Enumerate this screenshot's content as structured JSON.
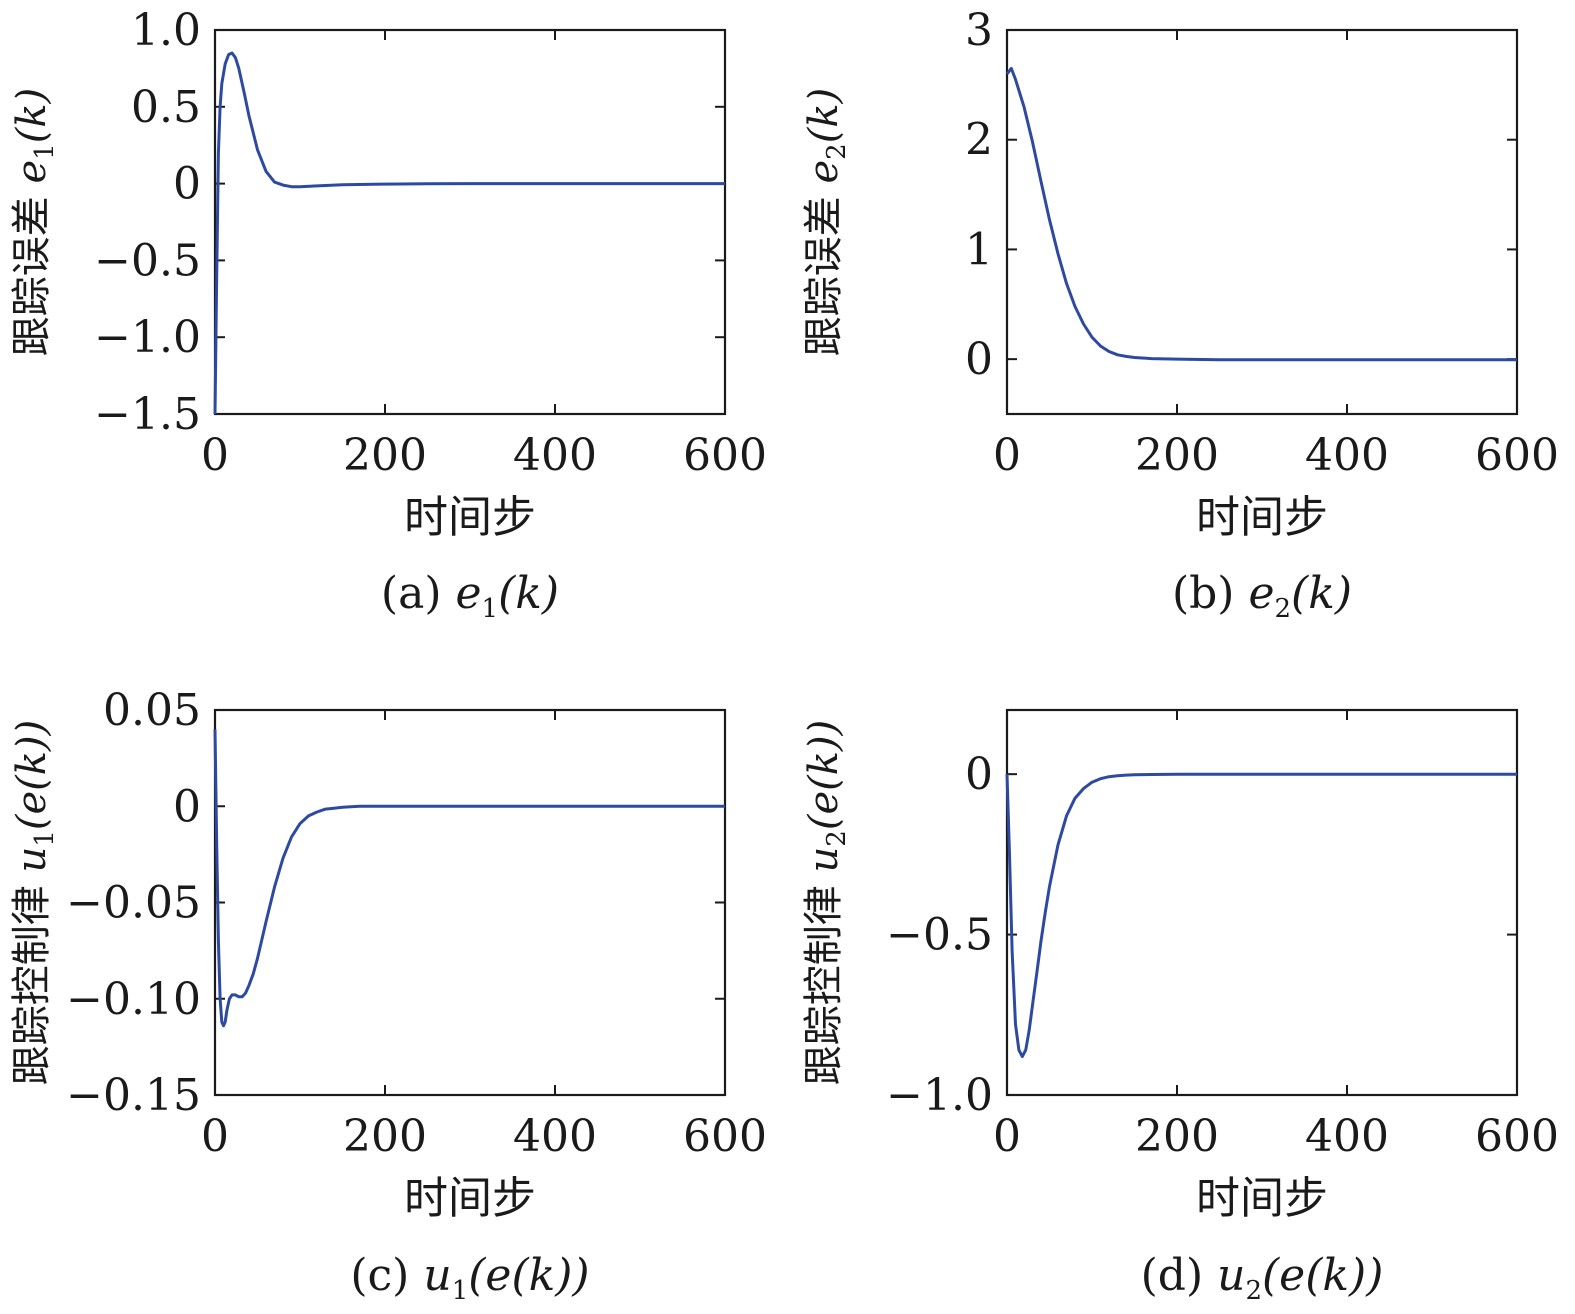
{
  "style": {
    "line_color": "#2e4aa0"
  },
  "chart_data": [
    {
      "type": "line",
      "panel": "a",
      "caption": {
        "prefix": "(a)",
        "var": "e",
        "sub": "1",
        "arg": "(k)"
      },
      "xlabel": "时间步",
      "ylabel": {
        "text": "跟踪误差",
        "var": "e",
        "sub": "1",
        "arg": "(k)"
      },
      "xlim": [
        0,
        600
      ],
      "ylim": [
        -1.5,
        1.0
      ],
      "xticks": [
        0,
        200,
        400,
        600
      ],
      "yticks": [
        -1.5,
        -1.0,
        -0.5,
        0,
        0.5,
        1.0
      ],
      "yticklabels": [
        "−1.5",
        "−1.0",
        "−0.5",
        "0",
        "0.5",
        "1.0"
      ],
      "series": [
        {
          "x": [
            0,
            2,
            4,
            6,
            8,
            12,
            16,
            20,
            24,
            28,
            34,
            40,
            50,
            60,
            70,
            80,
            90,
            100,
            120,
            150,
            200,
            250,
            300,
            400,
            500,
            600
          ],
          "y": [
            -1.5,
            -0.6,
            0.2,
            0.5,
            0.65,
            0.78,
            0.84,
            0.85,
            0.82,
            0.75,
            0.6,
            0.44,
            0.22,
            0.08,
            0.01,
            -0.01,
            -0.02,
            -0.02,
            -0.015,
            -0.008,
            -0.003,
            -0.001,
            0,
            0,
            0,
            0
          ]
        }
      ]
    },
    {
      "type": "line",
      "panel": "b",
      "caption": {
        "prefix": "(b)",
        "var": "e",
        "sub": "2",
        "arg": "(k)"
      },
      "xlabel": "时间步",
      "ylabel": {
        "text": "跟踪误差",
        "var": "e",
        "sub": "2",
        "arg": "(k)"
      },
      "xlim": [
        0,
        600
      ],
      "ylim": [
        -0.5,
        3
      ],
      "xticks": [
        0,
        200,
        400,
        600
      ],
      "yticks": [
        0,
        1,
        2,
        3
      ],
      "yticklabels": [
        "0",
        "1",
        "2",
        "3"
      ],
      "series": [
        {
          "x": [
            0,
            5,
            10,
            20,
            30,
            40,
            50,
            60,
            70,
            80,
            90,
            100,
            110,
            120,
            130,
            140,
            150,
            170,
            200,
            250,
            300,
            400,
            500,
            600
          ],
          "y": [
            2.6,
            2.65,
            2.55,
            2.3,
            1.98,
            1.62,
            1.27,
            0.96,
            0.69,
            0.48,
            0.32,
            0.2,
            0.12,
            0.07,
            0.04,
            0.025,
            0.015,
            0.005,
            0.0,
            -0.005,
            -0.005,
            -0.005,
            -0.005,
            -0.005
          ]
        }
      ]
    },
    {
      "type": "line",
      "panel": "c",
      "caption": {
        "prefix": "(c)",
        "var": "u",
        "sub": "1",
        "arg": "(e(k))"
      },
      "xlabel": "时间步",
      "ylabel": {
        "text": "跟踪控制律",
        "var": "u",
        "sub": "1",
        "arg": "(e(k))"
      },
      "xlim": [
        0,
        600
      ],
      "ylim": [
        -0.15,
        0.05
      ],
      "xticks": [
        0,
        200,
        400,
        600
      ],
      "yticks": [
        -0.15,
        -0.1,
        -0.05,
        0,
        0.05
      ],
      "yticklabels": [
        "−0.15",
        "−0.10",
        "−0.05",
        "0",
        "0.05"
      ],
      "series": [
        {
          "x": [
            0,
            2,
            4,
            6,
            8,
            10,
            12,
            14,
            17,
            20,
            24,
            28,
            32,
            36,
            40,
            45,
            50,
            60,
            70,
            80,
            90,
            100,
            110,
            120,
            130,
            140,
            150,
            170,
            200,
            250,
            300,
            400,
            500,
            600
          ],
          "y": [
            0.04,
            -0.02,
            -0.07,
            -0.1,
            -0.112,
            -0.114,
            -0.112,
            -0.106,
            -0.1,
            -0.098,
            -0.098,
            -0.099,
            -0.099,
            -0.097,
            -0.093,
            -0.087,
            -0.079,
            -0.06,
            -0.042,
            -0.027,
            -0.016,
            -0.009,
            -0.005,
            -0.003,
            -0.0015,
            -0.001,
            -0.0005,
            0,
            0,
            0,
            0,
            0,
            0,
            0
          ]
        }
      ]
    },
    {
      "type": "line",
      "panel": "d",
      "caption": {
        "prefix": "(d)",
        "var": "u",
        "sub": "2",
        "arg": "(e(k))"
      },
      "xlabel": "时间步",
      "ylabel": {
        "text": "跟踪控制律",
        "var": "u",
        "sub": "2",
        "arg": "(e(k))"
      },
      "xlim": [
        0,
        600
      ],
      "ylim": [
        -1.0,
        0.2
      ],
      "xticks": [
        0,
        200,
        400,
        600
      ],
      "yticks": [
        -1.0,
        -0.5,
        0
      ],
      "yticklabels": [
        "−1.0",
        "−0.5",
        "0"
      ],
      "series": [
        {
          "x": [
            0,
            3,
            6,
            10,
            14,
            18,
            22,
            26,
            30,
            35,
            40,
            45,
            50,
            60,
            70,
            80,
            90,
            100,
            110,
            120,
            130,
            140,
            150,
            170,
            200,
            250,
            300,
            400,
            500,
            600
          ],
          "y": [
            0,
            -0.25,
            -0.55,
            -0.78,
            -0.86,
            -0.88,
            -0.86,
            -0.8,
            -0.72,
            -0.62,
            -0.52,
            -0.43,
            -0.35,
            -0.22,
            -0.13,
            -0.075,
            -0.045,
            -0.025,
            -0.014,
            -0.008,
            -0.005,
            -0.003,
            -0.002,
            -0.001,
            0,
            0,
            0,
            0,
            0,
            0
          ]
        }
      ]
    }
  ]
}
